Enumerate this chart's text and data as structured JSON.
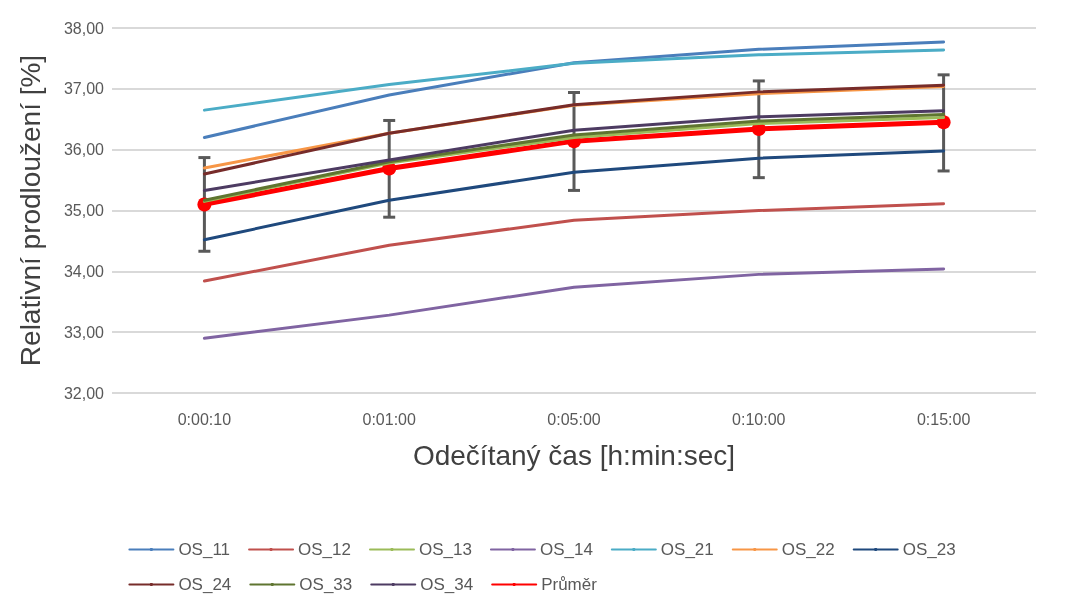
{
  "chart_data": {
    "type": "line",
    "xlabel": "Odečítaný čas [h:min:sec]",
    "ylabel": "Relativní prodloužení [%]",
    "categories": [
      "0:00:10",
      "0:01:00",
      "0:05:00",
      "0:10:00",
      "0:15:00"
    ],
    "ylim": [
      32,
      38
    ],
    "yticks": [
      {
        "value": 32,
        "label": "32,00"
      },
      {
        "value": 33,
        "label": "33,00"
      },
      {
        "value": 34,
        "label": "34,00"
      },
      {
        "value": 35,
        "label": "35,00"
      },
      {
        "value": 36,
        "label": "36,00"
      },
      {
        "value": 37,
        "label": "37,00"
      },
      {
        "value": 38,
        "label": "38,00"
      }
    ],
    "grid": "y",
    "legend": "bottom",
    "marker": "none",
    "series": [
      {
        "name": "OS_11",
        "color": "#4a7ebb",
        "values": [
          36.2,
          36.9,
          37.43,
          37.65,
          37.77
        ]
      },
      {
        "name": "OS_12",
        "color": "#c0504d",
        "values": [
          33.84,
          34.43,
          34.84,
          35.0,
          35.11
        ]
      },
      {
        "name": "OS_13",
        "color": "#9bbb59",
        "values": [
          35.15,
          35.78,
          36.2,
          36.43,
          36.53
        ]
      },
      {
        "name": "OS_14",
        "color": "#8064a2",
        "values": [
          32.9,
          33.28,
          33.74,
          33.95,
          34.04
        ]
      },
      {
        "name": "OS_21",
        "color": "#4bacc6",
        "values": [
          36.65,
          37.07,
          37.42,
          37.56,
          37.64
        ]
      },
      {
        "name": "OS_22",
        "color": "#f79646",
        "values": [
          35.7,
          36.27,
          36.73,
          36.92,
          37.04
        ]
      },
      {
        "name": "OS_23",
        "color": "#1f497d",
        "values": [
          34.52,
          35.17,
          35.63,
          35.86,
          35.98
        ]
      },
      {
        "name": "OS_24",
        "color": "#772c2a",
        "values": [
          35.6,
          36.27,
          36.74,
          36.95,
          37.06
        ]
      },
      {
        "name": "OS_33",
        "color": "#5f7530",
        "values": [
          35.17,
          35.8,
          36.24,
          36.47,
          36.58
        ]
      },
      {
        "name": "OS_34",
        "color": "#4d3b62",
        "values": [
          35.33,
          35.83,
          36.32,
          36.54,
          36.64
        ]
      },
      {
        "name": "Průměr",
        "color": "#ff0000",
        "marker": "circle",
        "values": [
          35.1,
          35.69,
          36.14,
          36.34,
          36.45
        ],
        "errors": [
          [
            34.33,
            35.87
          ],
          [
            34.89,
            36.48
          ],
          [
            35.33,
            36.94
          ],
          [
            35.54,
            37.13
          ],
          [
            35.65,
            37.23
          ]
        ]
      }
    ]
  }
}
